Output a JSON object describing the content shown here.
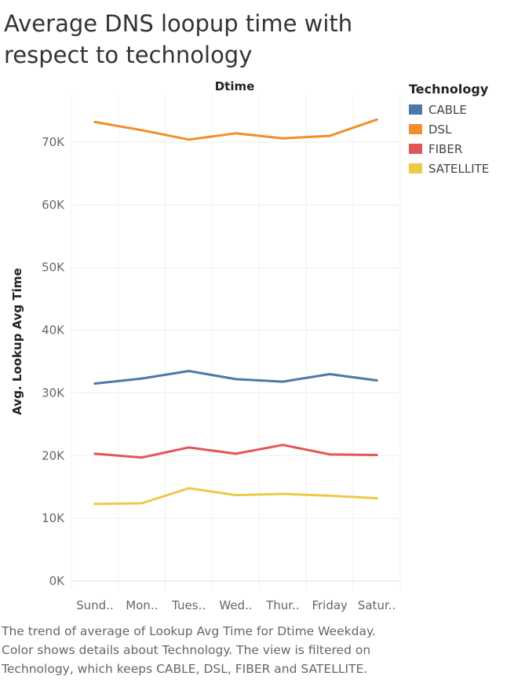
{
  "title": "Average DNS loopup time with respect to technology",
  "caption": "The trend of average of Lookup Avg Time for Dtime Weekday.  Color shows details about Technology. The view is filtered on Technology, which keeps CABLE, DSL, FIBER and SATELLITE.",
  "chart_data": {
    "type": "line",
    "xlabel": "Dtime",
    "ylabel": "Avg. Lookup Avg Time",
    "categories": [
      "Sund..",
      "Mon..",
      "Tues..",
      "Wed..",
      "Thur..",
      "Friday",
      "Satur.."
    ],
    "y_ticks": [
      "0K",
      "10K",
      "20K",
      "30K",
      "40K",
      "50K",
      "60K",
      "70K"
    ],
    "ylim": [
      0,
      75000
    ],
    "grid": true,
    "legend_title": "Technology",
    "legend_position": "top-right",
    "series": [
      {
        "name": "CABLE",
        "color": "#4e79a7",
        "values": [
          31500,
          32300,
          33500,
          32200,
          31800,
          33000,
          32000
        ]
      },
      {
        "name": "DSL",
        "color": "#f28e2b",
        "values": [
          73200,
          71900,
          70400,
          71400,
          70600,
          71000,
          73600
        ]
      },
      {
        "name": "FIBER",
        "color": "#e15759",
        "values": [
          20300,
          19700,
          21300,
          20300,
          21700,
          20200,
          20100
        ]
      },
      {
        "name": "SATELLITE",
        "color": "#edc948",
        "values": [
          12300,
          12400,
          14800,
          13700,
          13900,
          13600,
          13200
        ]
      }
    ]
  }
}
